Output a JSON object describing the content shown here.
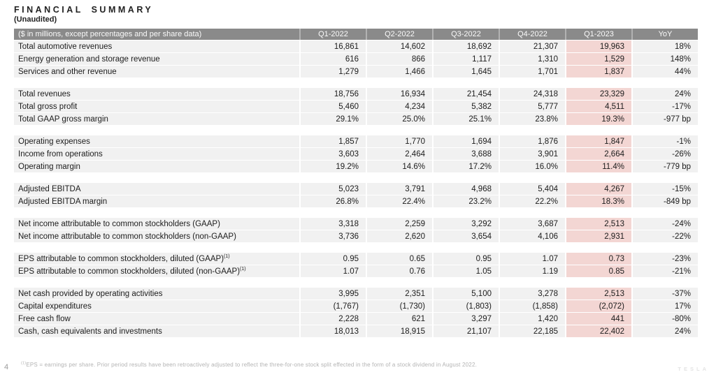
{
  "title": "FINANCIAL SUMMARY",
  "subtitle": "(Unaudited)",
  "colors": {
    "highlight": "#f3d6d3",
    "header_bg": "#8a8a8a",
    "row_bg": "#f1f1f1"
  },
  "table": {
    "header": [
      "($ in millions, except percentages and per share data)",
      "Q1-2022",
      "Q2-2022",
      "Q3-2022",
      "Q4-2022",
      "Q1-2023",
      "YoY"
    ],
    "highlight_column": "Q1-2023",
    "highlight_column_index": 4,
    "sections": [
      {
        "rows": [
          {
            "label": "Total automotive revenues",
            "values": [
              "16,861",
              "14,602",
              "18,692",
              "21,307",
              "19,963",
              "18%"
            ]
          },
          {
            "label": "Energy generation and storage revenue",
            "values": [
              "616",
              "866",
              "1,117",
              "1,310",
              "1,529",
              "148%"
            ]
          },
          {
            "label": "Services and other revenue",
            "values": [
              "1,279",
              "1,466",
              "1,645",
              "1,701",
              "1,837",
              "44%"
            ]
          }
        ]
      },
      {
        "rows": [
          {
            "label": "Total revenues",
            "values": [
              "18,756",
              "16,934",
              "21,454",
              "24,318",
              "23,329",
              "24%"
            ]
          },
          {
            "label": "Total gross profit",
            "values": [
              "5,460",
              "4,234",
              "5,382",
              "5,777",
              "4,511",
              "-17%"
            ]
          },
          {
            "label": "Total GAAP gross margin",
            "values": [
              "29.1%",
              "25.0%",
              "25.1%",
              "23.8%",
              "19.3%",
              "-977 bp"
            ]
          }
        ]
      },
      {
        "rows": [
          {
            "label": "Operating expenses",
            "values": [
              "1,857",
              "1,770",
              "1,694",
              "1,876",
              "1,847",
              "-1%"
            ]
          },
          {
            "label": "Income from operations",
            "values": [
              "3,603",
              "2,464",
              "3,688",
              "3,901",
              "2,664",
              "-26%"
            ]
          },
          {
            "label": "Operating margin",
            "values": [
              "19.2%",
              "14.6%",
              "17.2%",
              "16.0%",
              "11.4%",
              "-779 bp"
            ]
          }
        ]
      },
      {
        "rows": [
          {
            "label": "Adjusted EBITDA",
            "values": [
              "5,023",
              "3,791",
              "4,968",
              "5,404",
              "4,267",
              "-15%"
            ]
          },
          {
            "label": "Adjusted EBITDA margin",
            "values": [
              "26.8%",
              "22.4%",
              "23.2%",
              "22.2%",
              "18.3%",
              "-849 bp"
            ]
          }
        ]
      },
      {
        "rows": [
          {
            "label": "Net income attributable to common stockholders (GAAP)",
            "values": [
              "3,318",
              "2,259",
              "3,292",
              "3,687",
              "2,513",
              "-24%"
            ]
          },
          {
            "label": "Net income attributable to common stockholders (non-GAAP)",
            "values": [
              "3,736",
              "2,620",
              "3,654",
              "4,106",
              "2,931",
              "-22%"
            ]
          }
        ]
      },
      {
        "rows": [
          {
            "label": "EPS attributable to common stockholders, diluted (GAAP)",
            "sup": "(1)",
            "values": [
              "0.95",
              "0.65",
              "0.95",
              "1.07",
              "0.73",
              "-23%"
            ]
          },
          {
            "label": "EPS attributable to common stockholders, diluted (non-GAAP)",
            "sup": "(1)",
            "values": [
              "1.07",
              "0.76",
              "1.05",
              "1.19",
              "0.85",
              "-21%"
            ]
          }
        ]
      },
      {
        "rows": [
          {
            "label": "Net cash provided by operating activities",
            "values": [
              "3,995",
              "2,351",
              "5,100",
              "3,278",
              "2,513",
              "-37%"
            ]
          },
          {
            "label": "Capital expenditures",
            "values": [
              "(1,767)",
              "(1,730)",
              "(1,803)",
              "(1,858)",
              "(2,072)",
              "17%"
            ]
          },
          {
            "label": "Free cash flow",
            "values": [
              "2,228",
              "621",
              "3,297",
              "1,420",
              "441",
              "-80%"
            ]
          },
          {
            "label": "Cash, cash equivalents and investments",
            "values": [
              "18,013",
              "18,915",
              "21,107",
              "22,185",
              "22,402",
              "24%"
            ]
          }
        ]
      }
    ]
  },
  "footnote": {
    "sup": "(1)",
    "text": "EPS = earnings per share. Prior period results have been retroactively adjusted to reflect the three-for-one stock split effected in the form of a stock dividend in August 2022."
  },
  "page_number": "4",
  "watermark": "TESLA"
}
